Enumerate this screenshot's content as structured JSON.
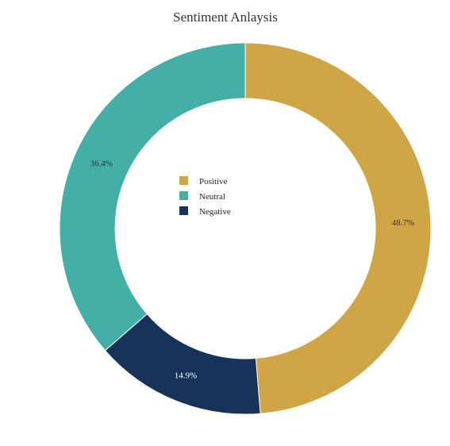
{
  "chart_data": {
    "type": "pie",
    "donut": true,
    "title": "Sentiment Anlaysis",
    "legend_position": "center",
    "slices": [
      {
        "label": "Positive",
        "value": 48.7,
        "display": "48.7%",
        "color": "#cfa545",
        "label_color": "#333333"
      },
      {
        "label": "Negative",
        "value": 14.9,
        "display": "14.9%",
        "color": "#17335a",
        "label_color": "#ffffff"
      },
      {
        "label": "Neutral",
        "value": 36.4,
        "display": "36.4%",
        "color": "#44afa7",
        "label_color": "#333333"
      }
    ],
    "legend_order": [
      "Positive",
      "Neutral",
      "Negative"
    ]
  }
}
